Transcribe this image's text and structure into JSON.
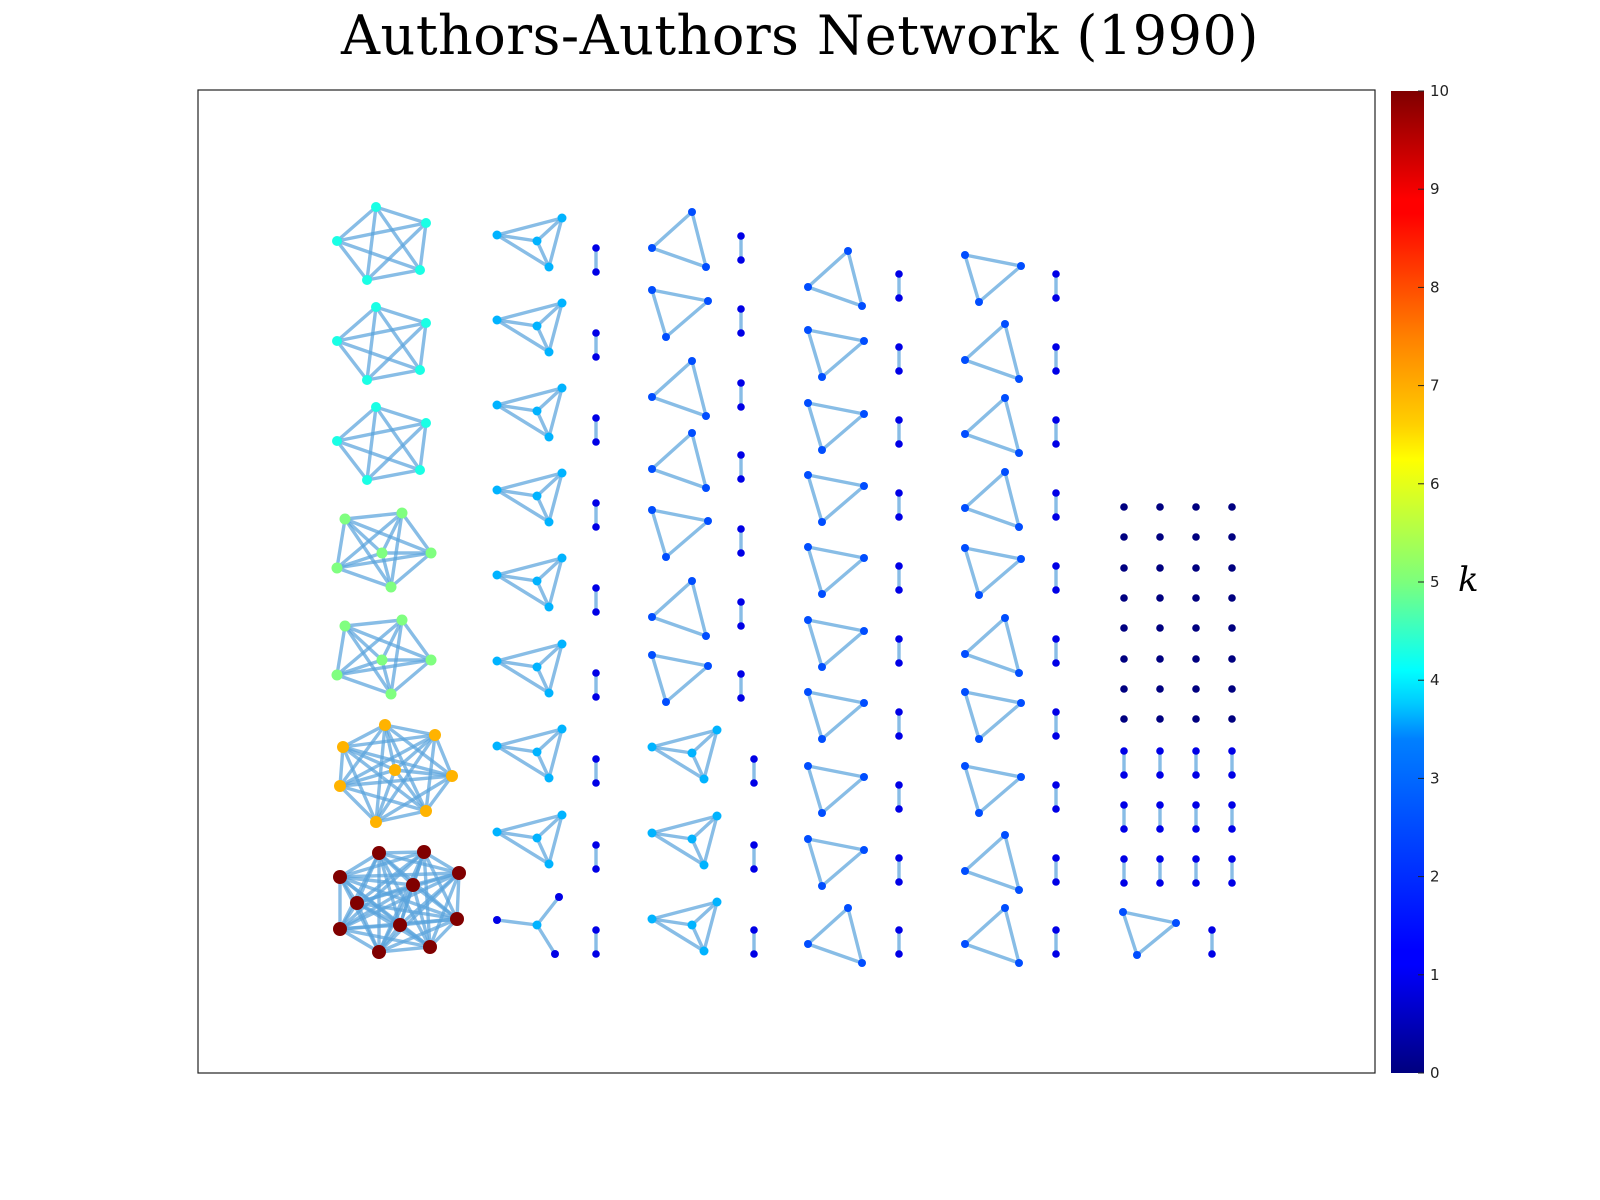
{
  "title": "Authors-Authors Network (1990)",
  "colorbar": {
    "label": "k",
    "min": 0,
    "max": 10,
    "ticks": [
      "0",
      "1",
      "2",
      "3",
      "4",
      "5",
      "6",
      "7",
      "8",
      "9",
      "10"
    ],
    "colormap": "jet"
  },
  "edge_color": "#5aa3dc",
  "components": [
    {
      "type": "complete",
      "size": 5,
      "count": 3,
      "degree": 4
    },
    {
      "type": "near-complete",
      "size": 6,
      "count": 2,
      "degree": 5
    },
    {
      "type": "complete",
      "size": 8,
      "count": 1,
      "degree": 7
    },
    {
      "type": "complete",
      "size": 11,
      "count": 1,
      "degree": 10
    },
    {
      "type": "triangle-with-hub",
      "size": 4,
      "count": 11,
      "degree": 3
    },
    {
      "type": "star",
      "size": 4,
      "count": 1,
      "degree": 3
    },
    {
      "type": "triangle",
      "size": 3,
      "count": 38,
      "degree": 2
    },
    {
      "type": "pair",
      "size": 2,
      "count": 56,
      "degree": 1
    },
    {
      "type": "isolated",
      "size": 1,
      "count": 32,
      "degree": 0
    }
  ]
}
